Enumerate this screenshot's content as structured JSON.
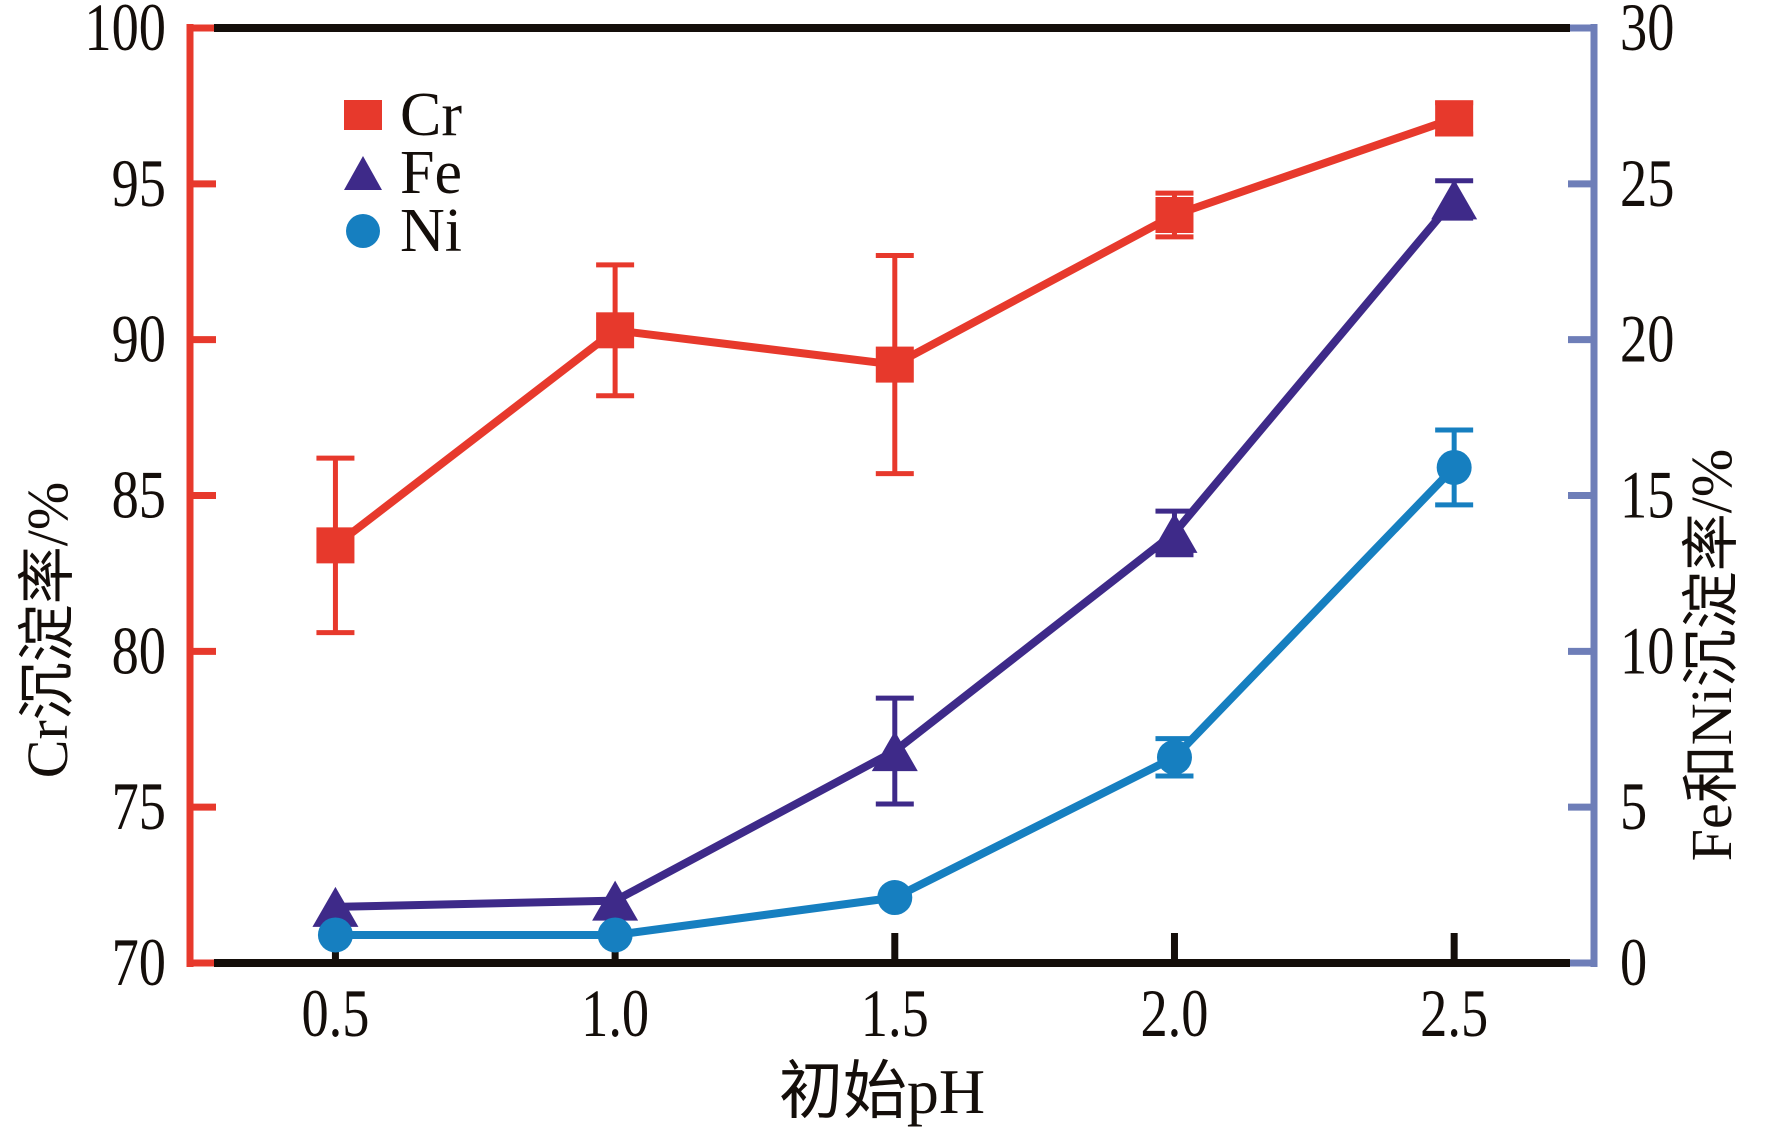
{
  "figure": {
    "background": "#ffffff",
    "description": "Line chart of precipitation rates vs initial pH with dual y axes and error bars"
  },
  "colors": {
    "cr_red": "#e7392c",
    "fe_purple": "#3e2a89",
    "ni_blue": "#167fc0",
    "left_axis": "#e7392c",
    "right_axis": "#6e7eb8",
    "frame_black": "#140e0a",
    "text": "#140e0a"
  },
  "chart_data": {
    "type": "line",
    "title": "",
    "xlabel": "初始pH",
    "x": [
      0.5,
      1.0,
      1.5,
      2.0,
      2.5
    ],
    "x_tick_labels": [
      "0.5",
      "1.0",
      "1.5",
      "2.0",
      "2.5"
    ],
    "xlim": [
      0.24,
      2.75
    ],
    "grid": false,
    "legend_position": "upper-left-inside",
    "y_left": {
      "label": "Cr沉淀率/%",
      "lim": [
        70,
        100
      ],
      "ticks": [
        70,
        75,
        80,
        85,
        90,
        95,
        100
      ],
      "axis_color": "#e7392c"
    },
    "y_right": {
      "label": "Fe和Ni沉淀率/%",
      "lim": [
        0,
        30
      ],
      "ticks": [
        0,
        5,
        10,
        15,
        20,
        25,
        30
      ],
      "axis_color": "#6e7eb8"
    },
    "series": [
      {
        "name": "Cr",
        "axis": "left",
        "marker": "square",
        "color": "#e7392c",
        "values": [
          83.4,
          90.3,
          89.2,
          94.0,
          97.1
        ],
        "errors": [
          2.8,
          2.1,
          3.5,
          0.7,
          0.5
        ]
      },
      {
        "name": "Fe",
        "axis": "right",
        "marker": "triangle",
        "color": "#3e2a89",
        "values": [
          1.8,
          2.0,
          6.8,
          13.8,
          24.5
        ],
        "errors": [
          0,
          0,
          1.7,
          0.7,
          0.6
        ]
      },
      {
        "name": "Ni",
        "axis": "right",
        "marker": "circle",
        "color": "#167fc0",
        "values": [
          0.9,
          0.9,
          2.1,
          6.6,
          15.9
        ],
        "errors": [
          0,
          0,
          0,
          0.6,
          1.2
        ]
      }
    ]
  }
}
